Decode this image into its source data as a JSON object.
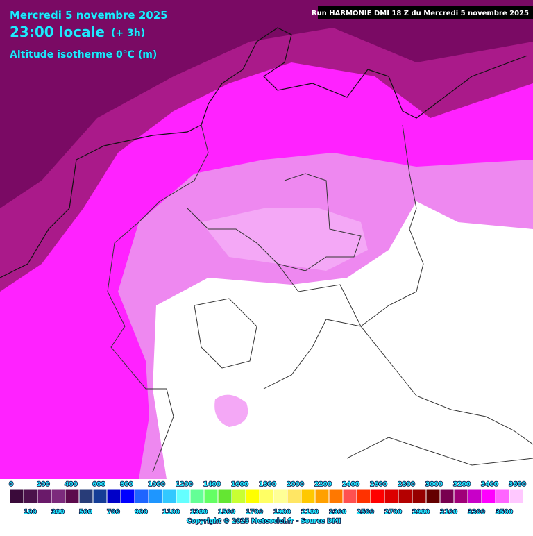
{
  "header": {
    "date": "Mercredi 5 novembre 2025",
    "time": "23:00 locale",
    "offset": "(+ 3h)",
    "parameter": "Altitude isotherme 0°C (m)",
    "run": "Run HARMONIE DMI 18 Z du Mercredi 5 novembre 2025"
  },
  "legend": {
    "labels": [
      "0",
      "100",
      "200",
      "300",
      "400",
      "500",
      "600",
      "700",
      "800",
      "900",
      "1000",
      "1100",
      "1200",
      "1300",
      "1400",
      "1500",
      "1600",
      "1700",
      "1800",
      "1900",
      "2000",
      "2100",
      "2200",
      "2300",
      "2400",
      "2500",
      "2600",
      "2700",
      "2800",
      "2900",
      "3000",
      "3100",
      "3200",
      "3300",
      "3400",
      "3500",
      "3600"
    ],
    "colors": [
      "#3a0a3a",
      "#4b124b",
      "#6a1a6a",
      "#7c2a7c",
      "#5c0a4c",
      "#283c78",
      "#143c96",
      "#0000c8",
      "#0000ff",
      "#1e64ff",
      "#1e96ff",
      "#32c8ff",
      "#64ffff",
      "#64ff96",
      "#64ff64",
      "#64e632",
      "#c8ff32",
      "#ffff00",
      "#ffff64",
      "#ffff96",
      "#ffe664",
      "#ffc800",
      "#ffa000",
      "#ff7800",
      "#ff5050",
      "#ff3200",
      "#ff0000",
      "#dc0000",
      "#b40000",
      "#960000",
      "#640000",
      "#780050",
      "#a00078",
      "#c800c8",
      "#ff00ff",
      "#ff64ff",
      "#ffc8ff"
    ]
  },
  "footer": {
    "copyright": "Copyright © 2025 Meteociel.fr - Source DMI"
  }
}
